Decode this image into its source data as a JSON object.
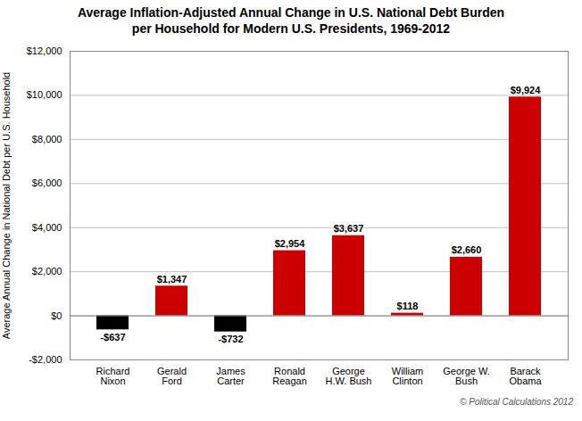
{
  "chart_data": {
    "type": "bar",
    "title": "Average Inflation-Adjusted Annual Change in U.S. National Debt Burden\nper Household for Modern U.S. Presidents, 1969-2012",
    "ylabel": "Average Annual Change in National Debt per U.S. Household",
    "categories": [
      "Richard\nNixon",
      "Gerald\nFord",
      "James\nCarter",
      "Ronald\nReagan",
      "George\nH.W. Bush",
      "William\nClinton",
      "George W.\nBush",
      "Barack\nObama"
    ],
    "values": [
      -637,
      1347,
      -732,
      2954,
      3637,
      118,
      2660,
      9924
    ],
    "value_labels": [
      "-$637",
      "$1,347",
      "-$732",
      "$2,954",
      "$3,637",
      "$118",
      "$2,660",
      "$9,924"
    ],
    "colors": [
      "#000000",
      "#cc0000",
      "#000000",
      "#cc0000",
      "#cc0000",
      "#cc0000",
      "#cc0000",
      "#cc0000"
    ],
    "data_labels": true,
    "ylim": [
      -2000,
      12000
    ],
    "yticks": [
      {
        "value": -2000,
        "label": "-$2,000"
      },
      {
        "value": 0,
        "label": "$0"
      },
      {
        "value": 2000,
        "label": "$2,000"
      },
      {
        "value": 4000,
        "label": "$4,000"
      },
      {
        "value": 6000,
        "label": "$6,000"
      },
      {
        "value": 8000,
        "label": "$8,000"
      },
      {
        "value": 10000,
        "label": "$10,000"
      },
      {
        "value": 12000,
        "label": "$12,000"
      }
    ],
    "grid": true,
    "annotations": [
      "© Political Calculations 2012"
    ]
  }
}
